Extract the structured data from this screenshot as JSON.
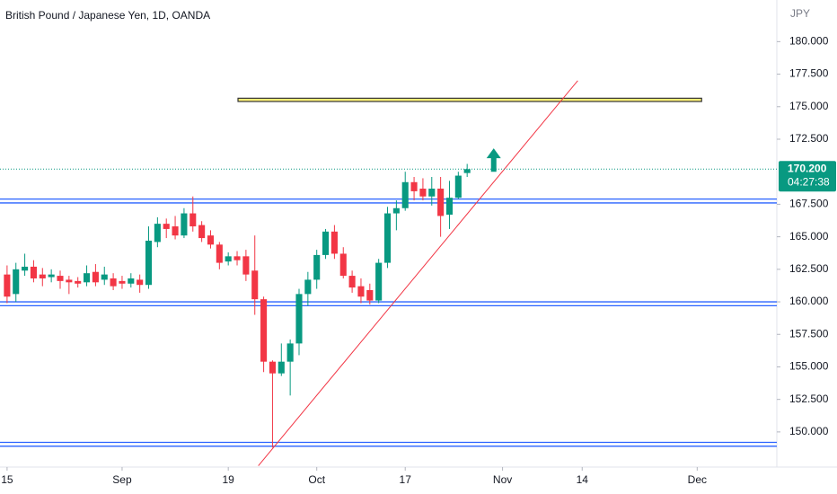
{
  "chart_data": {
    "type": "candlestick",
    "title": "British Pound / Japanese Yen, 1D, OANDA",
    "currency": "JPY",
    "up_color": "#089981",
    "down_color": "#f23645",
    "xlim": [
      -0.8,
      87
    ],
    "ylim": [
      147.3,
      183.2
    ],
    "xticks": [
      {
        "value": 0,
        "label": "15"
      },
      {
        "value": 13,
        "label": "Sep"
      },
      {
        "value": 25,
        "label": "19"
      },
      {
        "value": 35,
        "label": "Oct"
      },
      {
        "value": 45,
        "label": "17"
      },
      {
        "value": 56,
        "label": "Nov"
      },
      {
        "value": 65,
        "label": "14"
      },
      {
        "value": 78,
        "label": "Dec"
      }
    ],
    "yticks": [
      {
        "value": 150,
        "label": "150.000"
      },
      {
        "value": 152.5,
        "label": "152.500"
      },
      {
        "value": 155,
        "label": "155.000"
      },
      {
        "value": 157.5,
        "label": "157.500"
      },
      {
        "value": 160,
        "label": "160.000"
      },
      {
        "value": 162.5,
        "label": "162.500"
      },
      {
        "value": 165,
        "label": "165.000"
      },
      {
        "value": 167.5,
        "label": "167.500"
      },
      {
        "value": 172.5,
        "label": "172.500"
      },
      {
        "value": 175,
        "label": "175.000"
      },
      {
        "value": 177.5,
        "label": "177.500"
      },
      {
        "value": 180,
        "label": "180.000"
      }
    ],
    "open": [
      162.1,
      160.6,
      162.4,
      162.7,
      162.1,
      161.9,
      162.0,
      161.7,
      161.6,
      161.5,
      162.3,
      161.7,
      161.8,
      161.6,
      161.4,
      161.7,
      161.3,
      164.6,
      166.0,
      165.8,
      165.1,
      166.8,
      165.9,
      165.1,
      164.4,
      163.1,
      163.5,
      163.5,
      162.4,
      160.2,
      155.4,
      154.5,
      155.4,
      156.8,
      160.6,
      161.7,
      163.6,
      165.4,
      163.7,
      162.0,
      161.2,
      160.9,
      160.1,
      163.0,
      166.8,
      167.2,
      169.2,
      168.7,
      168.1,
      168.7,
      166.7,
      168.0,
      169.9
    ],
    "high": [
      162.8,
      163.0,
      163.7,
      163.2,
      162.6,
      162.5,
      162.4,
      162.0,
      161.9,
      162.8,
      162.9,
      162.7,
      162.2,
      162.0,
      162.2,
      162.1,
      165.8,
      166.5,
      166.4,
      166.6,
      167.2,
      168.1,
      166.2,
      165.5,
      164.6,
      163.8,
      163.9,
      164.0,
      165.1,
      160.4,
      155.5,
      156.8,
      157.1,
      161.0,
      162.3,
      164.0,
      165.6,
      165.9,
      164.2,
      162.4,
      161.8,
      161.4,
      163.3,
      167.3,
      167.8,
      170.0,
      169.6,
      169.5,
      169.6,
      169.6,
      169.3,
      170.0,
      170.6
    ],
    "low": [
      159.9,
      160.0,
      162.0,
      161.5,
      161.2,
      161.5,
      161.0,
      160.6,
      161.1,
      161.2,
      161.2,
      161.3,
      160.9,
      161.0,
      161.1,
      160.7,
      161.0,
      164.2,
      164.9,
      164.8,
      164.9,
      165.4,
      164.6,
      164.1,
      162.5,
      162.8,
      162.8,
      161.6,
      159.0,
      154.6,
      148.8,
      154.3,
      152.8,
      155.9,
      159.7,
      161.0,
      163.3,
      163.3,
      161.8,
      160.7,
      159.9,
      159.8,
      159.9,
      162.6,
      165.5,
      167.0,
      167.8,
      167.8,
      167.4,
      165.0,
      165.6,
      167.9,
      169.6
    ],
    "close": [
      160.4,
      162.5,
      162.7,
      161.8,
      161.8,
      162.1,
      161.6,
      161.5,
      161.4,
      162.2,
      161.5,
      162.1,
      161.2,
      161.4,
      161.8,
      161.3,
      164.7,
      166.0,
      165.6,
      165.1,
      166.8,
      165.8,
      164.9,
      164.4,
      163.0,
      163.5,
      163.2,
      162.1,
      160.2,
      155.4,
      154.5,
      155.4,
      156.8,
      160.6,
      161.7,
      163.6,
      165.4,
      163.7,
      162.0,
      161.1,
      160.4,
      160.1,
      163.0,
      166.8,
      167.2,
      169.2,
      168.5,
      168.1,
      168.7,
      166.6,
      168.0,
      169.7,
      170.2
    ],
    "last_price": {
      "value": 170.2,
      "label": "170.200"
    },
    "countdown": "04:27:38",
    "levels": [
      167.9,
      167.6,
      160.0,
      159.7,
      149.2,
      148.9
    ],
    "level_color": "#2962ff",
    "trendline": {
      "x": [
        28.4,
        64.5
      ],
      "y": [
        147.4,
        177.0
      ],
      "color": "#f23645"
    },
    "box": {
      "x": [
        26.1,
        78.5
      ],
      "y": [
        175.65,
        175.4
      ],
      "color": "#fff176"
    },
    "arrow": {
      "x": 55,
      "y": [
        170.0,
        171.8
      ],
      "color": "#089981"
    }
  }
}
